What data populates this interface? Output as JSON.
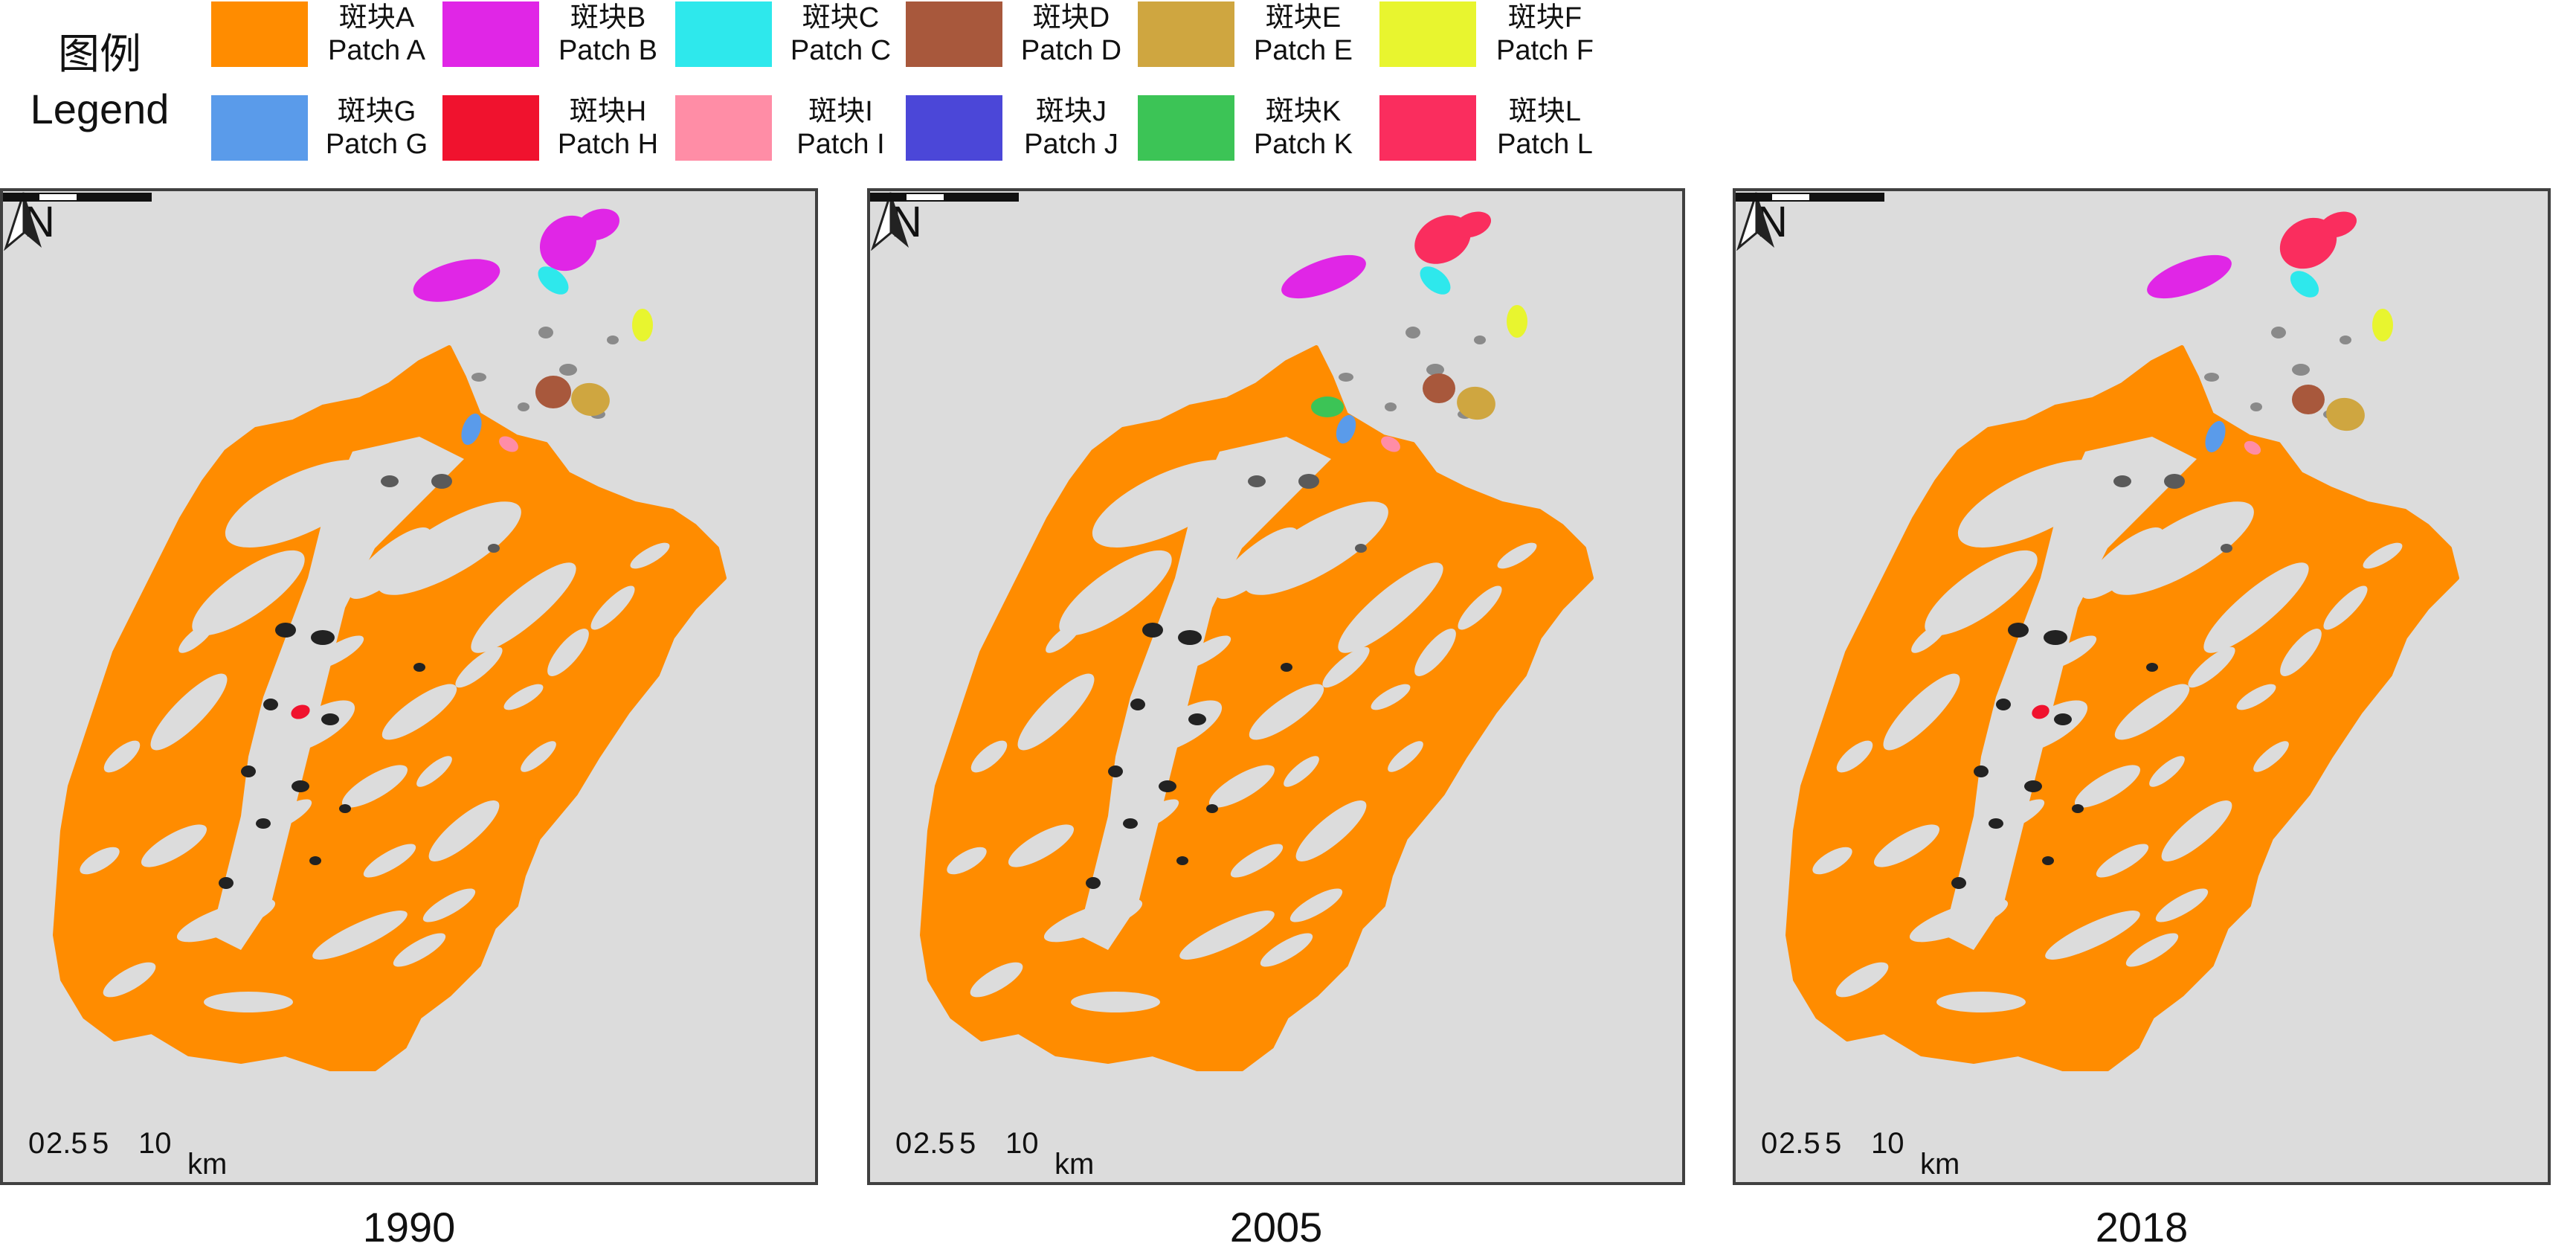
{
  "legend": {
    "title_cn": "图例",
    "title_en": "Legend",
    "items": [
      {
        "cn": "斑块A",
        "en": "Patch A",
        "color": "#FF8C00"
      },
      {
        "cn": "斑块B",
        "en": "Patch B",
        "color": "#E026E6"
      },
      {
        "cn": "斑块C",
        "en": "Patch C",
        "color": "#2EE8EC"
      },
      {
        "cn": "斑块D",
        "en": "Patch D",
        "color": "#A8583C"
      },
      {
        "cn": "斑块E",
        "en": "Patch E",
        "color": "#CFA640"
      },
      {
        "cn": "斑块F",
        "en": "Patch F",
        "color": "#E8F52F"
      },
      {
        "cn": "斑块G",
        "en": "Patch G",
        "color": "#5A9BEA"
      },
      {
        "cn": "斑块H",
        "en": "Patch H",
        "color": "#F0122E"
      },
      {
        "cn": "斑块I",
        "en": "Patch I",
        "color": "#FF8DA6"
      },
      {
        "cn": "斑块J",
        "en": "Patch J",
        "color": "#4B47D8"
      },
      {
        "cn": "斑块K",
        "en": "Patch K",
        "color": "#3CC456"
      },
      {
        "cn": "斑块L",
        "en": "Patch L",
        "color": "#FA2D5E"
      }
    ]
  },
  "map_common": {
    "north_label": "N",
    "scale_ticks": [
      "0",
      "2.5",
      "5",
      "10"
    ],
    "scale_unit": "km",
    "background_color": "#DCDCDC",
    "other_patch_colors": [
      "#8A8A8A",
      "#5A5A5A",
      "#222222"
    ]
  },
  "maps": [
    {
      "year": "1990"
    },
    {
      "year": "2005"
    },
    {
      "year": "2018"
    }
  ]
}
